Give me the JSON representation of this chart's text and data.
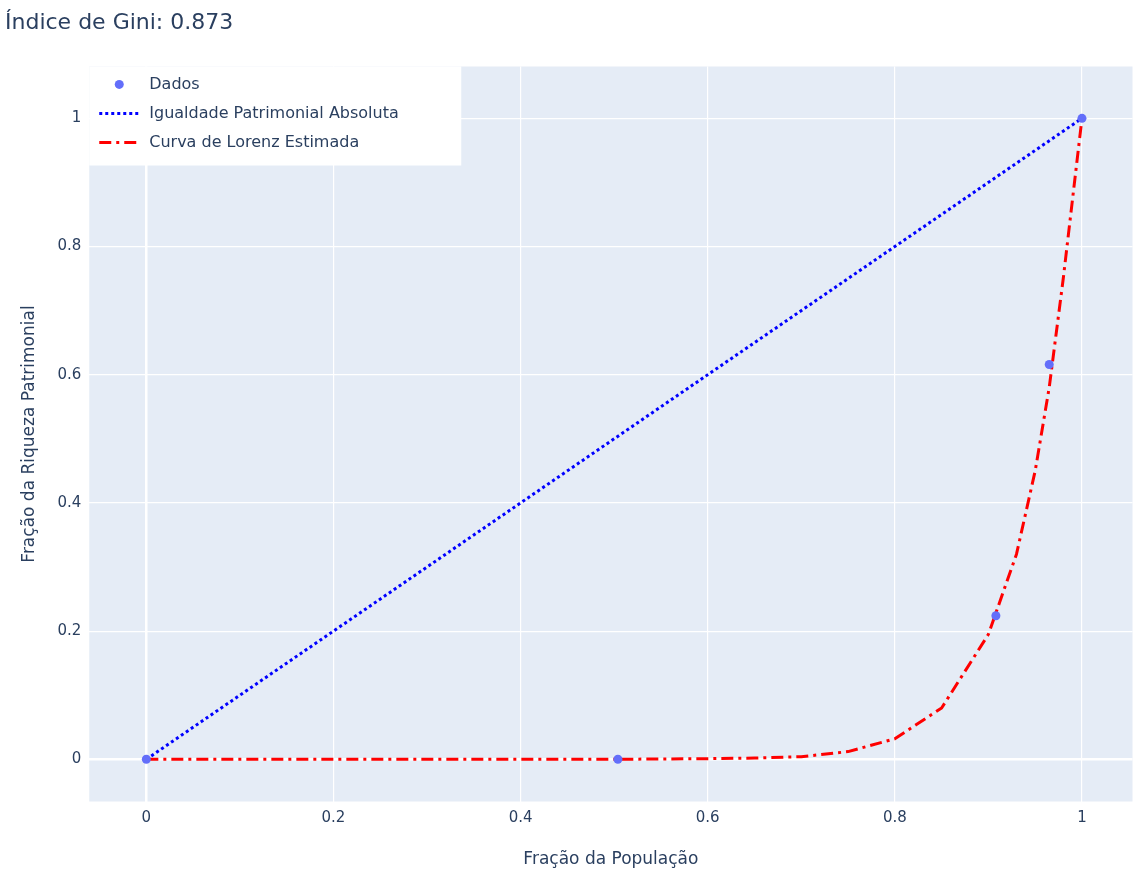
{
  "chart_data": {
    "type": "scatter",
    "title": "Índice de Gini: 0.873",
    "xlabel": "Fração da População",
    "ylabel": "Fração da Riqueza Patrimonial",
    "xlim": [
      -0.061,
      1.054
    ],
    "ylim": [
      -0.066,
      1.081
    ],
    "xticks": [
      0,
      0.2,
      0.4,
      0.6,
      0.8,
      1
    ],
    "yticks": [
      0,
      0.2,
      0.4,
      0.6,
      0.8,
      1
    ],
    "grid": true,
    "legend": "top left",
    "series": [
      {
        "name": "Dados",
        "type": "scatter",
        "marker": "circle",
        "color": "#636efa",
        "x": [
          0,
          0.504,
          0.908,
          0.965,
          1
        ],
        "values": [
          0,
          0,
          0.224,
          0.616,
          1
        ]
      },
      {
        "name": "Igualdade Patrimonial Absoluta",
        "type": "line",
        "line_style": "dotted",
        "marker": "none",
        "color": "#0000ff",
        "x": [
          0,
          1
        ],
        "values": [
          0,
          1
        ]
      },
      {
        "name": "Curva de Lorenz Estimada",
        "type": "line",
        "line_style": "dashdot",
        "marker": "none",
        "color": "#ff0000",
        "x": [
          0,
          0.5,
          0.6,
          0.65,
          0.7,
          0.75,
          0.8,
          0.85,
          0.9,
          0.93,
          0.95,
          0.965,
          0.98,
          1
        ],
        "values": [
          0,
          0,
          0.001,
          0.002,
          0.004,
          0.012,
          0.032,
          0.08,
          0.195,
          0.32,
          0.45,
          0.58,
          0.75,
          1
        ]
      }
    ]
  }
}
